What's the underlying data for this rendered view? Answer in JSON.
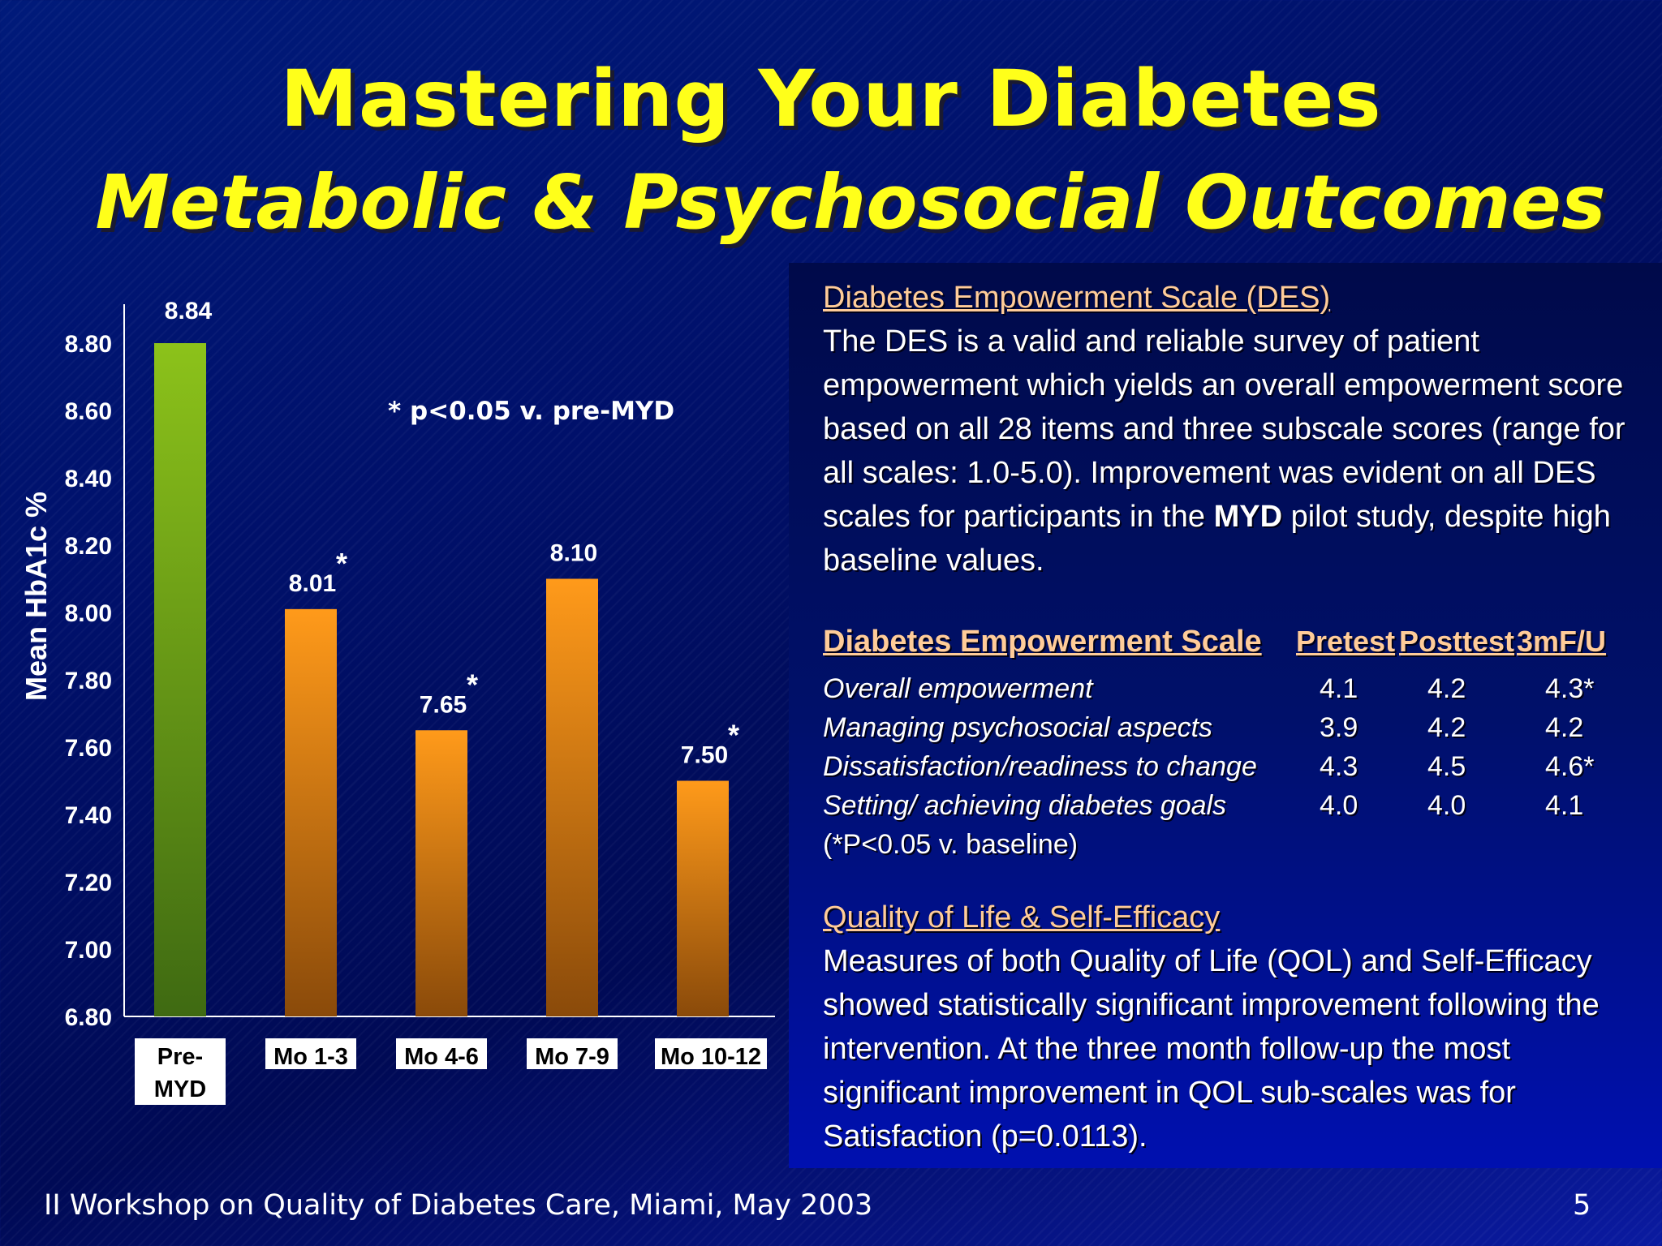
{
  "slide": {
    "title_line1": "Mastering Your Diabetes",
    "title_line2": "Metabolic & Psychosocial Outcomes",
    "footer_left": "II Workshop on Quality of Diabetes Care, Miami, May 2003",
    "page_number": "5"
  },
  "chart_data": {
    "type": "bar",
    "categories": [
      [
        "Pre-",
        "MYD"
      ],
      [
        "Mo 1-3"
      ],
      [
        "Mo 4-6"
      ],
      [
        "Mo 7-9"
      ],
      [
        "Mo 10-12"
      ]
    ],
    "values": [
      8.84,
      8.01,
      7.65,
      8.1,
      7.5
    ],
    "value_labels": [
      "8.84",
      "8.01",
      "7.65",
      "8.10",
      "7.50"
    ],
    "significant": [
      false,
      true,
      true,
      false,
      true
    ],
    "significance_marker": "*",
    "ylabel": "Mean HbA1c %",
    "ylim": [
      6.8,
      8.8
    ],
    "yticks": [
      "6.80",
      "7.00",
      "7.20",
      "7.40",
      "7.60",
      "7.80",
      "8.00",
      "8.20",
      "8.40",
      "8.60",
      "8.80"
    ],
    "annotation": "* p<0.05 v. pre-MYD",
    "colors": {
      "first_bar": "#8cc21a",
      "other_bars": "#ff9a1a"
    },
    "grid": false
  },
  "des": {
    "heading": "Diabetes Empowerment Scale (DES)",
    "text_1": "The DES is a valid and reliable survey of patient empowerment which yields an overall empowerment score based on all 28 items and three subscale scores (range for all scales: 1.0-5.0).  Improvement was evident on all DES scales for participants in the ",
    "text_bold": "MYD",
    "text_2": " pilot study, despite high baseline values."
  },
  "des_table": {
    "header": [
      "Diabetes Empowerment Scale",
      "Pretest",
      "Posttest",
      "3mF/U"
    ],
    "rows": [
      [
        "Overall empowerment",
        "4.1",
        "4.2",
        "4.3*"
      ],
      [
        "Managing psychosocial aspects",
        "3.9",
        "4.2",
        "4.2"
      ],
      [
        "Dissatisfaction/readiness to change",
        "4.3",
        "4.5",
        "4.6*"
      ],
      [
        "Setting/ achieving diabetes goals",
        "4.0",
        "4.0",
        "4.1"
      ]
    ],
    "note": "(*P<0.05 v. baseline)"
  },
  "qol": {
    "heading": "Quality of Life & Self-Efficacy",
    "text": "Measures of both Quality of Life (QOL) and Self-Efficacy showed statistically significant improvement following the intervention.  At the three month follow-up the most significant improvement in QOL sub-scales was for Satisfaction (p=0.0113)."
  }
}
